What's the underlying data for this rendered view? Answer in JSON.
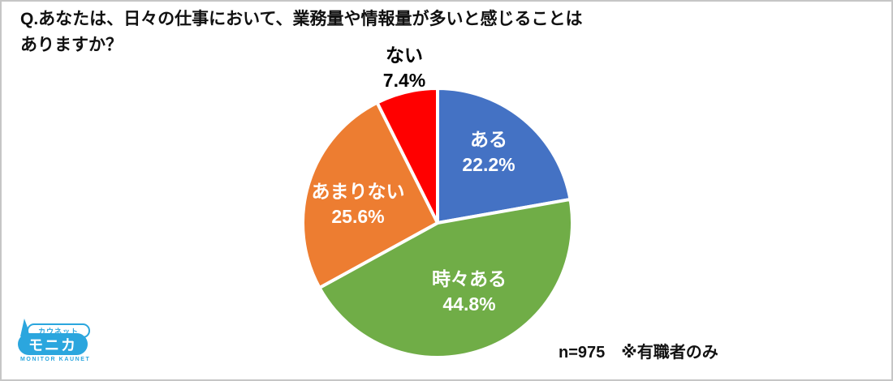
{
  "frame": {
    "background": "#ffffff",
    "border_color": "#c6c6c6"
  },
  "title": {
    "line1": "Q.あなたは、日々の仕事において、業務量や情報量が多いと感じることは",
    "line2": "ありますか？"
  },
  "note": {
    "text": "n=975　※有職者のみ"
  },
  "logo": {
    "top_label": "カウネット",
    "main_label": "モニカ",
    "sub_label": "MONITOR KAUNET",
    "color": "#2ba6de"
  },
  "chart_data": {
    "type": "pie",
    "title": "",
    "categories": [
      "ある",
      "時々ある",
      "あまりない",
      "ない"
    ],
    "values": [
      22.2,
      44.8,
      25.6,
      7.4
    ],
    "unit": "%",
    "colors": [
      "#4472c4",
      "#70ad47",
      "#ed7d31",
      "#ff0000"
    ],
    "start_angle_deg": 0,
    "direction": "clockwise",
    "slice_border_color": "#ffffff",
    "slice_border_width": 4,
    "legend": "none",
    "labels": [
      {
        "category": "ある",
        "percent_label": "22.2%",
        "placement": "inside",
        "text_color": "#ffffff",
        "offset": [
          63,
          -88
        ]
      },
      {
        "category": "時々ある",
        "percent_label": "44.8%",
        "placement": "inside",
        "text_color": "#ffffff",
        "offset": [
          39,
          84
        ]
      },
      {
        "category": "あまりない",
        "percent_label": "25.6%",
        "placement": "outside_colorfill",
        "text_color": "#ffffff",
        "offset": [
          -98,
          -24
        ]
      },
      {
        "category": "ない",
        "percent_label": "7.4%",
        "placement": "outside",
        "text_color": "#000000",
        "offset": [
          -41,
          -192
        ]
      }
    ]
  }
}
